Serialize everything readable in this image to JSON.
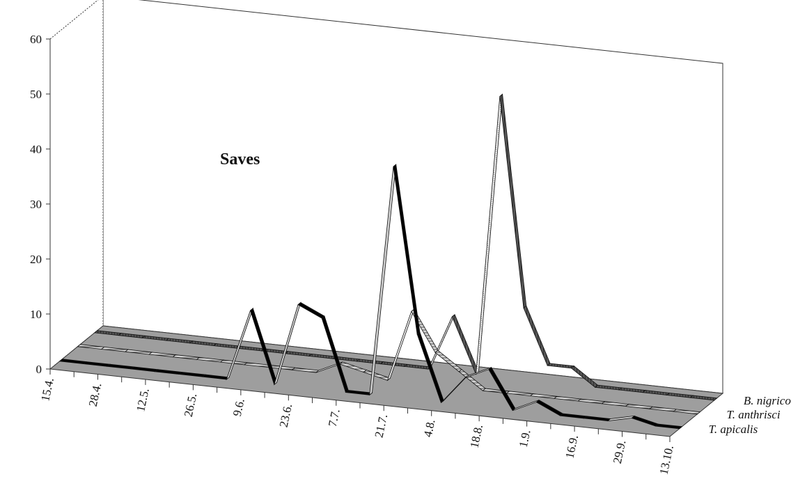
{
  "chart_data": {
    "type": "area",
    "title": "Saves",
    "ylim": [
      0,
      60
    ],
    "yticks": [
      "0",
      "10",
      "20",
      "30",
      "40",
      "50",
      "60"
    ],
    "grid": false,
    "categories": [
      "15.4.",
      "",
      "28.4.",
      "",
      "12.5.",
      "",
      "26.5.",
      "",
      "9.6.",
      "",
      "23.6.",
      "",
      "7.7.",
      "",
      "21.7.",
      "",
      "4.8.",
      "",
      "18.8.",
      "",
      "1.9.",
      "",
      "16.9.",
      "",
      "29.9.",
      "",
      "13.10."
    ],
    "series": [
      {
        "name": "T. apicalis",
        "values": [
          0,
          0,
          0,
          0,
          0,
          0,
          0,
          0,
          13,
          0,
          15,
          13,
          0,
          0,
          42,
          12,
          0,
          5,
          7,
          0,
          2,
          0,
          0,
          0,
          1,
          0,
          0
        ]
      },
      {
        "name": "T. anthrisci",
        "values": [
          0,
          0,
          0,
          0,
          0,
          0,
          0,
          0,
          0,
          0,
          0,
          2,
          1,
          0,
          13,
          6,
          3,
          0,
          0,
          0,
          0,
          0,
          0,
          0,
          0,
          0,
          0
        ]
      },
      {
        "name": "B. nigricornis",
        "values": [
          0,
          0,
          0,
          0,
          0,
          0,
          0,
          0,
          0,
          0,
          0,
          0,
          0,
          0,
          0,
          10,
          0,
          51,
          13,
          3,
          3,
          0,
          0,
          0,
          0,
          0,
          0
        ]
      }
    ],
    "colors": {
      "T. apicalis": "#000000",
      "T. anthrisci": "#bdbdbd",
      "B. nigricornis": "#4a4a4a",
      "floor": "#9e9e9e"
    }
  }
}
